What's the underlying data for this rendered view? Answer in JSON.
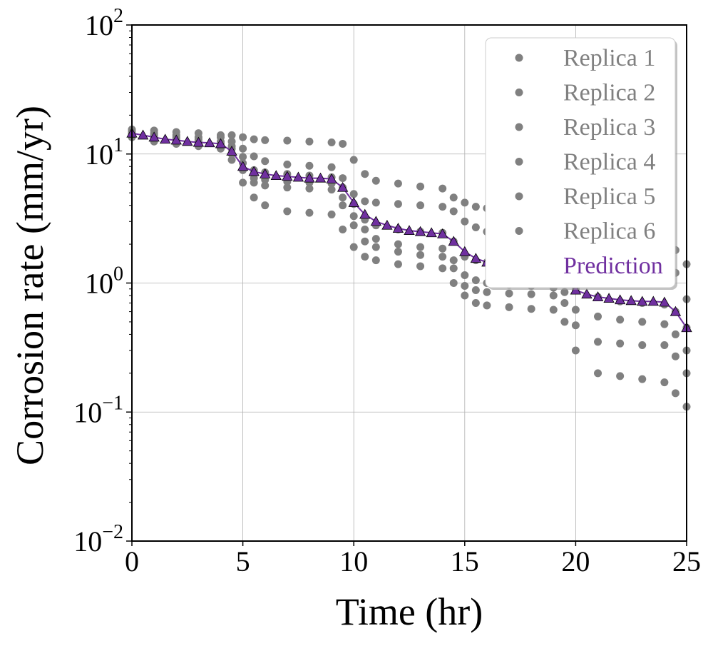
{
  "chart_data": {
    "type": "scatter",
    "title": "",
    "xlabel": "Time (hr)",
    "ylabel": "Corrosion rate (mm/yr)",
    "xlim": [
      0,
      25
    ],
    "ylim": [
      0.01,
      100
    ],
    "yscale": "log",
    "grid": true,
    "legend_position": "top-right",
    "x_ticks": [
      {
        "value": 0,
        "label": "0"
      },
      {
        "value": 5,
        "label": "5"
      },
      {
        "value": 10,
        "label": "10"
      },
      {
        "value": 15,
        "label": "15"
      },
      {
        "value": 20,
        "label": "20"
      },
      {
        "value": 25,
        "label": "25"
      }
    ],
    "y_ticks": [
      {
        "value": 0.01,
        "base": "10",
        "exp": "−2"
      },
      {
        "value": 0.1,
        "base": "10",
        "exp": "−1"
      },
      {
        "value": 1,
        "base": "10",
        "exp": "0"
      },
      {
        "value": 10,
        "base": "10",
        "exp": "1"
      },
      {
        "value": 100,
        "base": "10",
        "exp": "2"
      }
    ],
    "series": [
      {
        "name": "Replica 1",
        "color": "#808080",
        "marker": "circle",
        "x": [
          0,
          1,
          2,
          3,
          4,
          4.5,
          5,
          5.5,
          6,
          7,
          8,
          9,
          9.5,
          10,
          10.5,
          11,
          12,
          13,
          14,
          14.5,
          15,
          15.5,
          16,
          17,
          18,
          19,
          19.5,
          20,
          21,
          22,
          23,
          24,
          24.5,
          25
        ],
        "y": [
          15.5,
          15.2,
          14.8,
          14.5,
          14,
          14,
          13.5,
          13,
          12.8,
          12.7,
          12.5,
          12.3,
          12,
          9,
          7,
          6.2,
          5.9,
          5.6,
          5.4,
          4.6,
          4.2,
          3.9,
          3.8,
          3.7,
          3.6,
          3.5,
          3.3,
          2.8,
          2.6,
          2.5,
          2.4,
          2.3,
          1.8,
          1.4
        ]
      },
      {
        "name": "Replica 2",
        "color": "#808080",
        "marker": "circle",
        "x": [
          0,
          1,
          2,
          3,
          4,
          4.5,
          5,
          5.5,
          6,
          7,
          8,
          9,
          9.5,
          10,
          10.5,
          11,
          12,
          13,
          14,
          14.5,
          15,
          15.5,
          16,
          17,
          18,
          19,
          19.5,
          20,
          21,
          22,
          23,
          24,
          24.5,
          25
        ],
        "y": [
          15,
          14.5,
          14,
          13.5,
          13.5,
          12.5,
          11,
          9.6,
          8.8,
          8.3,
          8.1,
          7.9,
          6.5,
          4.9,
          4.3,
          4.2,
          4.1,
          4,
          3.9,
          3.6,
          3,
          2.7,
          2.5,
          2.4,
          2.3,
          2.2,
          2.1,
          1.6,
          1.5,
          1.45,
          1.4,
          1.35,
          1.2,
          0.75
        ]
      },
      {
        "name": "Replica 3",
        "color": "#808080",
        "marker": "circle",
        "x": [
          0,
          1,
          2,
          3,
          4,
          4.5,
          5,
          5.5,
          6,
          7,
          8,
          9,
          9.5,
          10,
          10.5,
          11,
          12,
          13,
          14,
          14.5,
          15,
          15.5,
          16,
          17,
          18,
          19,
          19.5,
          20,
          21,
          22,
          23,
          24,
          24.5,
          25
        ],
        "y": [
          14.5,
          14,
          13.5,
          13,
          12.5,
          11.5,
          9.5,
          7.5,
          7.2,
          7,
          6.8,
          6.6,
          5.5,
          4.1,
          3.1,
          2.8,
          2.6,
          2.5,
          2.45,
          2.1,
          1.6,
          1.5,
          1.45,
          1.4,
          1.35,
          1.3,
          1.2,
          0.9,
          0.78,
          0.72,
          0.7,
          0.68,
          0.6,
          0.45
        ]
      },
      {
        "name": "Replica 4",
        "color": "#808080",
        "marker": "circle",
        "x": [
          0,
          1,
          2,
          3,
          4,
          4.5,
          5,
          5.5,
          6,
          7,
          8,
          9,
          9.5,
          10,
          10.5,
          11,
          12,
          13,
          14,
          14.5,
          15,
          15.5,
          16,
          17,
          18,
          19,
          19.5,
          20,
          21,
          22,
          23,
          24,
          24.5,
          25
        ],
        "y": [
          14,
          13.5,
          13,
          12.5,
          12,
          11,
          8.5,
          6.5,
          6.3,
          6.1,
          6,
          5.9,
          4.6,
          3.3,
          2.6,
          2.2,
          2,
          1.9,
          1.85,
          1.5,
          1.15,
          1.05,
          1,
          0.97,
          0.95,
          0.92,
          0.85,
          0.62,
          0.55,
          0.52,
          0.5,
          0.48,
          0.4,
          0.3
        ]
      },
      {
        "name": "Replica 5",
        "color": "#808080",
        "marker": "circle",
        "x": [
          0,
          1,
          2,
          3,
          4,
          4.5,
          5,
          5.5,
          6,
          7,
          8,
          9,
          9.5,
          10,
          10.5,
          11,
          12,
          13,
          14,
          14.5,
          15,
          15.5,
          16,
          17,
          18,
          19,
          19.5,
          20,
          21,
          22,
          23,
          24,
          24.5,
          25
        ],
        "y": [
          14,
          13,
          12.5,
          12,
          11.5,
          10,
          7.5,
          6,
          5.7,
          5.5,
          5.4,
          5.3,
          4,
          2.8,
          2.1,
          1.9,
          1.75,
          1.65,
          1.6,
          1.3,
          0.95,
          0.88,
          0.85,
          0.83,
          0.82,
          0.8,
          0.7,
          0.47,
          0.35,
          0.34,
          0.33,
          0.33,
          0.27,
          0.2
        ]
      },
      {
        "name": "Replica 6",
        "color": "#808080",
        "marker": "circle",
        "x": [
          0,
          1,
          2,
          3,
          4,
          4.5,
          5,
          5.5,
          6,
          7,
          8,
          9,
          9.5,
          10,
          10.5,
          11,
          12,
          13,
          14,
          14.5,
          15,
          15.5,
          16,
          17,
          18,
          19,
          19.5,
          20,
          21,
          22,
          23,
          24,
          24.5,
          25
        ],
        "y": [
          13.5,
          12.5,
          12,
          11.5,
          11,
          9,
          6,
          4.6,
          4,
          3.6,
          3.5,
          3.4,
          2.6,
          1.9,
          1.6,
          1.5,
          1.4,
          1.35,
          1.3,
          1,
          0.8,
          0.7,
          0.67,
          0.65,
          0.63,
          0.62,
          0.5,
          0.3,
          0.2,
          0.19,
          0.18,
          0.17,
          0.14,
          0.11
        ]
      },
      {
        "name": "Prediction",
        "color": "#7030a0",
        "marker": "triangle",
        "x": [
          0,
          0.5,
          1,
          1.5,
          2,
          2.5,
          3,
          3.5,
          4,
          4.5,
          5,
          5.5,
          6,
          6.5,
          7,
          7.5,
          8,
          8.5,
          9,
          9.5,
          10,
          10.5,
          11,
          11.5,
          12,
          12.5,
          13,
          13.5,
          14,
          14.5,
          15,
          15.5,
          16,
          16.5,
          17,
          17.5,
          18,
          18.5,
          19,
          19.5,
          20,
          20.5,
          21,
          21.5,
          22,
          22.5,
          23,
          23.5,
          24,
          24.5,
          25
        ],
        "y": [
          14.5,
          14,
          13.5,
          13,
          12.8,
          12.5,
          12.3,
          12.2,
          12,
          10.5,
          8,
          7.3,
          7,
          6.8,
          6.7,
          6.6,
          6.5,
          6.5,
          6.4,
          5.5,
          4.2,
          3.4,
          3,
          2.8,
          2.65,
          2.55,
          2.5,
          2.45,
          2.4,
          2.1,
          1.75,
          1.55,
          1.45,
          1.42,
          1.4,
          1.38,
          1.38,
          1.37,
          1.37,
          1.1,
          0.88,
          0.82,
          0.78,
          0.76,
          0.74,
          0.73,
          0.72,
          0.72,
          0.71,
          0.6,
          0.45
        ]
      }
    ]
  }
}
